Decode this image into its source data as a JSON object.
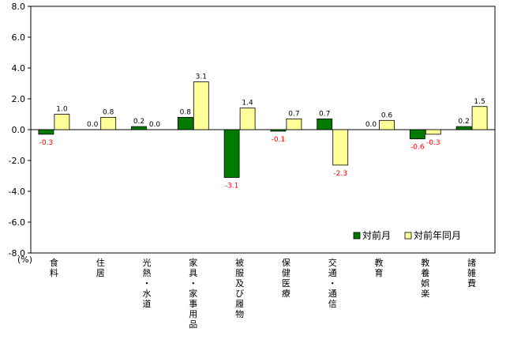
{
  "chart_data": {
    "type": "bar",
    "unit_label": "(%)",
    "ylim": [
      -8.0,
      8.0
    ],
    "yticks": [
      "8.0",
      "6.0",
      "4.0",
      "2.0",
      "0.0",
      "-2.0",
      "-4.0",
      "-6.0",
      "-8.0"
    ],
    "categories": [
      "食料",
      "住居",
      "光熱・水道",
      "家具・家事用品",
      "被服及び履物",
      "保健医療",
      "交通・通信",
      "教育",
      "教養娯楽",
      "諸雑費"
    ],
    "series": [
      {
        "name": "対前月",
        "color": "#007a00",
        "values": [
          -0.3,
          0.0,
          0.2,
          0.8,
          -3.1,
          -0.1,
          0.7,
          0.0,
          -0.6,
          0.2
        ],
        "labels": [
          "-0.3",
          "0.0",
          "0.2",
          "0.8",
          "-3.1",
          "-0.1",
          "0.7",
          "0.0",
          "-0.6",
          "0.2"
        ]
      },
      {
        "name": "対前年同月",
        "color": "#ffff99",
        "values": [
          1.0,
          0.8,
          0.0,
          3.1,
          1.4,
          0.7,
          -2.3,
          0.6,
          -0.3,
          1.5
        ],
        "labels": [
          "1.0",
          "0.8",
          "0.0",
          "3.1",
          "1.4",
          "0.7",
          "-2.3",
          "0.6",
          "-0.3",
          "1.5"
        ]
      }
    ],
    "legend_position": "bottom-right"
  }
}
